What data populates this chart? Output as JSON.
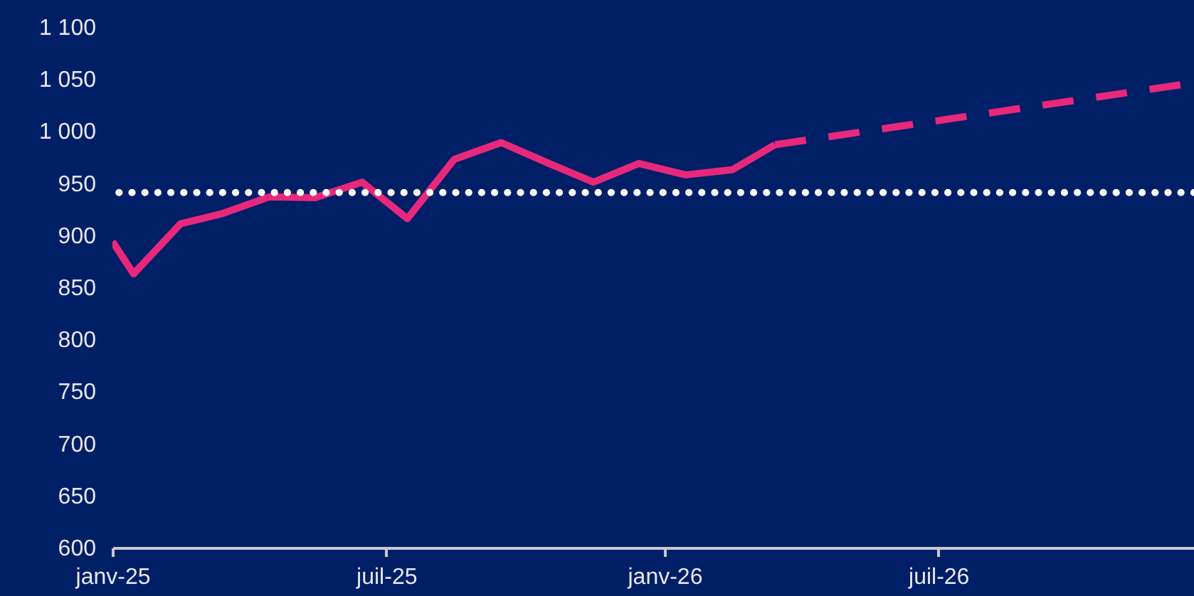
{
  "chart_data": {
    "type": "line",
    "xlim": [
      "2025-01-01",
      "2026-12-17"
    ],
    "xticks": [
      {
        "value": "2025-01-01",
        "label": "janv-25"
      },
      {
        "value": "2025-07-01",
        "label": "juil-25"
      },
      {
        "value": "2026-01-01",
        "label": "janv-26"
      },
      {
        "value": "2026-07-01",
        "label": "juil-26"
      }
    ],
    "ylim": [
      600,
      1100
    ],
    "yticks": [
      600,
      650,
      700,
      750,
      800,
      850,
      900,
      950,
      {
        "value": 1000,
        "label": "1 000"
      },
      {
        "value": 1050,
        "label": "1 050"
      },
      {
        "value": 1100,
        "label": "1 100"
      }
    ],
    "series": [
      {
        "color": "#e8287a",
        "line_style": "solid",
        "x": [
          "2025-01-01",
          "2025-01-15",
          "2025-02-15",
          "2025-03-15",
          "2025-04-15",
          "2025-05-15",
          "2025-06-15",
          "2025-07-15",
          "2025-08-15",
          "2025-09-15",
          "2025-10-15",
          "2025-11-15",
          "2025-12-15",
          "2026-01-15",
          "2026-02-15",
          "2026-03-15"
        ],
        "values": [
          894,
          863,
          911,
          921,
          937,
          936,
          951,
          916,
          973,
          989,
          970,
          951,
          969,
          958,
          963,
          987
        ]
      },
      {
        "color": "#e8287a",
        "line_style": "dashed",
        "x": [
          "2026-03-15",
          "2026-12-15"
        ],
        "values": [
          987,
          1046
        ]
      }
    ],
    "ref_lines": [
      {
        "axis": "y",
        "value": 941,
        "color": "#ffffff",
        "line_style": "dotted"
      }
    ],
    "grid": false,
    "marker": "none"
  }
}
